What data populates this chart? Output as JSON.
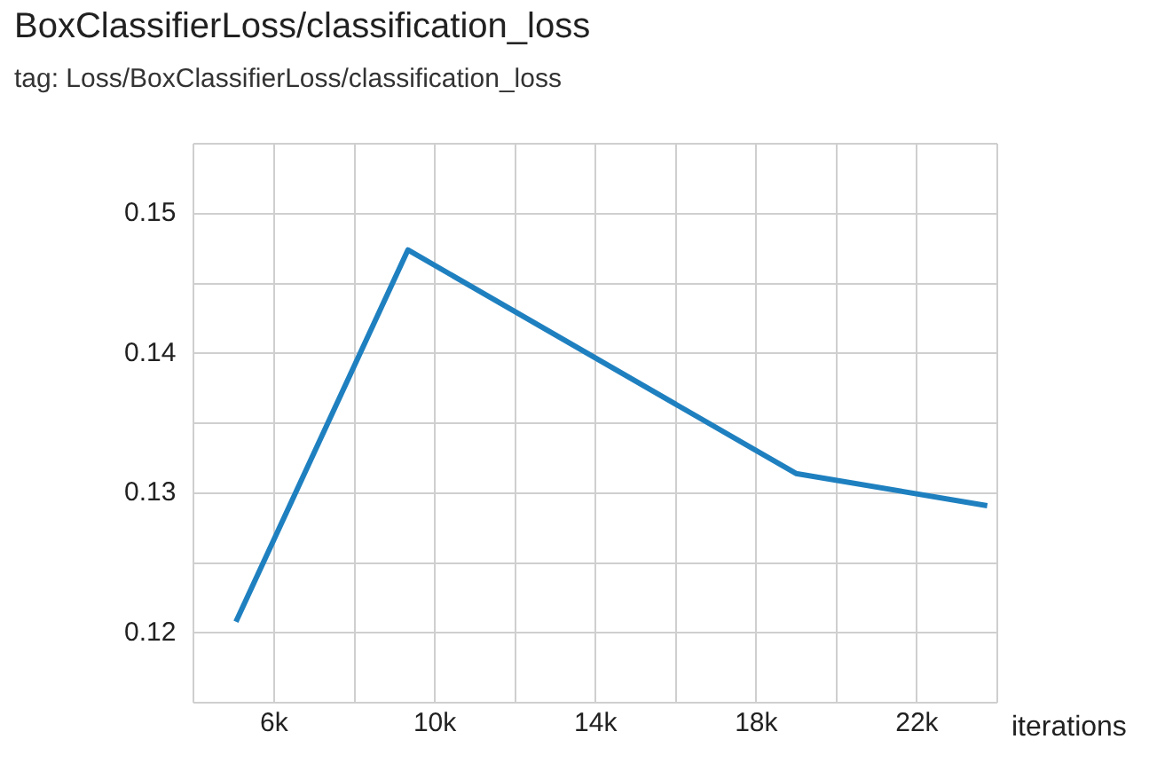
{
  "chart_data": {
    "type": "line",
    "title": "BoxClassifierLoss/classification_loss",
    "subtitle": "tag: Loss/BoxClassifierLoss/classification_loss",
    "xlabel": "iterations",
    "x": [
      5050,
      9330,
      18990,
      23750
    ],
    "series": [
      {
        "color": "#1f80c0",
        "values": [
          0.1208,
          0.1474,
          0.1314,
          0.1291
        ]
      }
    ],
    "xlim": [
      4000,
      24000
    ],
    "xticks": [
      {
        "value": 4000,
        "label": null
      },
      {
        "value": 6000,
        "label": "6k"
      },
      {
        "value": 8000,
        "label": null
      },
      {
        "value": 10000,
        "label": "10k"
      },
      {
        "value": 12000,
        "label": null
      },
      {
        "value": 14000,
        "label": "14k"
      },
      {
        "value": 16000,
        "label": null
      },
      {
        "value": 18000,
        "label": "18k"
      },
      {
        "value": 20000,
        "label": null
      },
      {
        "value": 22000,
        "label": "22k"
      },
      {
        "value": 24000,
        "label": null
      }
    ],
    "ylim": [
      0.115,
      0.155
    ],
    "yticks": [
      {
        "value": 0.115,
        "label": null
      },
      0.12,
      {
        "value": 0.125,
        "label": null
      },
      0.13,
      {
        "value": 0.135,
        "label": null
      },
      0.14,
      {
        "value": 0.145,
        "label": null
      },
      0.15,
      {
        "value": 0.155,
        "label": null
      }
    ],
    "grid": true,
    "legend": false,
    "marker": "none",
    "line_style": "solid"
  }
}
